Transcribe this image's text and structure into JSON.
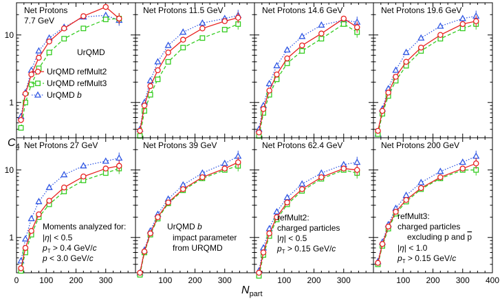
{
  "figure": {
    "ylabel_main": "C",
    "ylabel_sub": "4",
    "xlabel_main": "N",
    "xlabel_sub": "part",
    "ytick_labels": [
      "1",
      "10"
    ],
    "xtick_labels": [
      "0",
      "100",
      "200",
      "300",
      "400"
    ],
    "series_style": [
      {
        "name": "UrQMD refMult2",
        "color": "#e8201f",
        "marker": "circle",
        "dash": "solid"
      },
      {
        "name": "UrQMD refMult3",
        "color": "#33cc1f",
        "marker": "square",
        "dash": "dashed"
      },
      {
        "name": "UrQMD b",
        "color": "#2f56e3",
        "marker": "triangle",
        "dash": "dotted"
      }
    ],
    "legend": {
      "title": "UrQMD",
      "entries": [
        {
          "text": "UrQMD refMult2"
        },
        {
          "text": "UrQMD refMult3"
        },
        {
          "prefix": "UrQMD ",
          "italic": "b"
        }
      ]
    },
    "notes": {
      "moments": {
        "title": "Moments analyzed for:",
        "l1_pre": "|",
        "l1_sym": "η",
        "l1_post": "| < 0.5",
        "l2_p": "p",
        "l2_sub": "T",
        "l2_mid": " > 0.4 GeV/",
        "l2_c": "c",
        "l3_p": "p",
        "l3_mid": " < 3.0 GeV/",
        "l3_c": "c"
      },
      "b_def": {
        "l1_pre": "UrQMD ",
        "l1_b": "b",
        "l2": "impact parameter",
        "l3": "from URQMD"
      },
      "refmult2": {
        "l1": "refMult2:",
        "l2": "charged particles",
        "l3_pre": "|",
        "l3_sym": "η",
        "l3_post": "| < 0.5",
        "l4_p": "p",
        "l4_sub": "T",
        "l4_mid": " > 0.15 GeV/",
        "l4_c": "c"
      },
      "refmult3": {
        "l1": "refMult3:",
        "l2": "charged particles",
        "l3_pre": "excluding p and ",
        "l3_pbar": "p",
        "l4_pre": "|",
        "l4_sym": "η",
        "l4_post": "| < 1.0",
        "l5_p": "p",
        "l5_sub": "T",
        "l5_mid": " > 0.15 GeV/",
        "l5_c": "c"
      }
    }
  },
  "chart_data": [
    {
      "type": "line",
      "title": "Net Protons",
      "subtitle": "7.7 GeV",
      "xlabel": "Npart",
      "ylabel": "C4",
      "xlim": [
        0,
        400
      ],
      "ylim": [
        0.3,
        30
      ],
      "yscale": "log",
      "series": [
        {
          "name": "UrQMD refMult2",
          "x": [
            15,
            30,
            50,
            75,
            110,
            160,
            225,
            300,
            345
          ],
          "y": [
            0.55,
            1.35,
            2.6,
            4.6,
            8.0,
            12.5,
            19.0,
            26.0,
            17.5
          ]
        },
        {
          "name": "UrQMD refMult3",
          "x": [
            15,
            30,
            50,
            75,
            110,
            160,
            225,
            300,
            345
          ],
          "y": [
            0.42,
            1.0,
            1.85,
            3.2,
            5.5,
            8.8,
            12.5,
            17.0,
            17.5
          ]
        },
        {
          "name": "UrQMD b",
          "x": [
            15,
            30,
            50,
            75,
            110,
            160,
            225,
            300,
            345
          ],
          "y": [
            0.62,
            1.4,
            3.0,
            5.8,
            9.0,
            13.0,
            18.5,
            19.5,
            16.5
          ]
        }
      ]
    },
    {
      "type": "line",
      "title": "Net Protons 11.5 GeV",
      "xlabel": "Npart",
      "ylabel": "C4",
      "xlim": [
        0,
        400
      ],
      "ylim": [
        0.3,
        30
      ],
      "yscale": "log",
      "series": [
        {
          "name": "UrQMD refMult2",
          "x": [
            15,
            30,
            50,
            75,
            110,
            160,
            225,
            300,
            345
          ],
          "y": [
            0.38,
            0.9,
            1.75,
            3.0,
            5.5,
            8.5,
            12.5,
            16.0,
            18.0
          ]
        },
        {
          "name": "UrQMD refMult3",
          "x": [
            15,
            30,
            50,
            75,
            110,
            160,
            225,
            300,
            345
          ],
          "y": [
            0.32,
            0.75,
            1.3,
            2.2,
            4.0,
            6.5,
            9.0,
            12.0,
            14.5
          ]
        },
        {
          "name": "UrQMD b",
          "x": [
            15,
            30,
            50,
            75,
            110,
            160,
            225,
            300,
            345
          ],
          "y": [
            0.4,
            1.0,
            2.1,
            4.0,
            7.0,
            11.0,
            15.0,
            17.5,
            19.5
          ]
        }
      ]
    },
    {
      "type": "line",
      "title": "Net Protons 14.6 GeV",
      "xlabel": "Npart",
      "ylabel": "C4",
      "xlim": [
        0,
        400
      ],
      "ylim": [
        0.3,
        30
      ],
      "yscale": "log",
      "series": [
        {
          "name": "UrQMD refMult2",
          "x": [
            15,
            30,
            50,
            75,
            110,
            160,
            225,
            300,
            345
          ],
          "y": [
            0.36,
            0.8,
            1.5,
            2.6,
            4.5,
            7.0,
            10.5,
            17.5,
            13.0
          ]
        },
        {
          "name": "UrQMD refMult3",
          "x": [
            15,
            30,
            50,
            75,
            110,
            160,
            225,
            300,
            345
          ],
          "y": [
            0.32,
            0.7,
            1.3,
            2.2,
            3.8,
            5.8,
            8.8,
            14.5,
            11.0
          ]
        },
        {
          "name": "UrQMD b",
          "x": [
            15,
            30,
            50,
            75,
            110,
            160,
            225,
            300,
            345
          ],
          "y": [
            0.4,
            0.9,
            1.9,
            3.5,
            6.0,
            9.5,
            14.0,
            16.5,
            15.5
          ]
        }
      ]
    },
    {
      "type": "line",
      "title": "Net Protons 19.6 GeV",
      "xlabel": "Npart",
      "ylabel": "C4",
      "xlim": [
        0,
        400
      ],
      "ylim": [
        0.3,
        30
      ],
      "yscale": "log",
      "series": [
        {
          "name": "UrQMD refMult2",
          "x": [
            15,
            30,
            50,
            75,
            110,
            160,
            225,
            300,
            345
          ],
          "y": [
            0.38,
            0.75,
            1.4,
            2.4,
            4.0,
            6.5,
            10.0,
            14.5,
            16.0
          ]
        },
        {
          "name": "UrQMD refMult3",
          "x": [
            15,
            30,
            50,
            75,
            110,
            160,
            225,
            300,
            345
          ],
          "y": [
            0.34,
            0.68,
            1.25,
            2.1,
            3.5,
            5.8,
            8.8,
            12.5,
            14.5
          ]
        },
        {
          "name": "UrQMD b",
          "x": [
            15,
            30,
            50,
            75,
            110,
            160,
            225,
            300,
            345
          ],
          "y": [
            0.34,
            0.8,
            1.6,
            3.0,
            5.5,
            9.0,
            13.5,
            17.5,
            19.0
          ]
        }
      ]
    },
    {
      "type": "line",
      "title": "Net Protons 27 GeV",
      "xlabel": "Npart",
      "ylabel": "C4",
      "xlim": [
        0,
        400
      ],
      "ylim": [
        0.3,
        30
      ],
      "yscale": "log",
      "series": [
        {
          "name": "UrQMD refMult2",
          "x": [
            15,
            30,
            50,
            75,
            110,
            160,
            225,
            300,
            345
          ],
          "y": [
            0.35,
            0.7,
            1.25,
            2.2,
            3.5,
            5.5,
            8.0,
            10.5,
            11.5
          ]
        },
        {
          "name": "UrQMD refMult3",
          "x": [
            15,
            30,
            50,
            75,
            110,
            160,
            225,
            300,
            345
          ],
          "y": [
            0.32,
            0.6,
            1.1,
            2.0,
            3.1,
            4.8,
            7.0,
            9.0,
            10.5
          ]
        },
        {
          "name": "UrQMD b",
          "x": [
            15,
            30,
            50,
            75,
            110,
            160,
            225,
            300,
            345
          ],
          "y": [
            0.45,
            0.95,
            1.9,
            3.4,
            5.5,
            8.5,
            11.5,
            13.5,
            15.0
          ]
        }
      ]
    },
    {
      "type": "line",
      "title": "Net Protons 39 GeV",
      "xlabel": "Npart",
      "ylabel": "C4",
      "xlim": [
        0,
        400
      ],
      "ylim": [
        0.3,
        30
      ],
      "yscale": "log",
      "series": [
        {
          "name": "UrQMD refMult2",
          "x": [
            15,
            30,
            50,
            75,
            110,
            160,
            225,
            300,
            345
          ],
          "y": [
            0.3,
            0.62,
            1.15,
            2.0,
            3.3,
            5.2,
            7.8,
            10.5,
            13.0
          ]
        },
        {
          "name": "UrQMD refMult3",
          "x": [
            15,
            30,
            50,
            75,
            110,
            160,
            225,
            300,
            345
          ],
          "y": [
            0.28,
            0.6,
            1.1,
            1.9,
            3.2,
            5.0,
            7.5,
            10.0,
            11.5
          ]
        },
        {
          "name": "UrQMD b",
          "x": [
            15,
            30,
            50,
            75,
            110,
            160,
            225,
            300,
            345
          ],
          "y": [
            0.3,
            0.65,
            1.25,
            2.2,
            3.7,
            6.0,
            9.0,
            12.5,
            16.0
          ]
        }
      ]
    },
    {
      "type": "line",
      "title": "Net Protons 62.4 GeV",
      "xlabel": "Npart",
      "ylabel": "C4",
      "xlim": [
        0,
        400
      ],
      "ylim": [
        0.3,
        30
      ],
      "yscale": "log",
      "series": [
        {
          "name": "UrQMD refMult2",
          "x": [
            15,
            30,
            50,
            75,
            110,
            160,
            225,
            300,
            345
          ],
          "y": [
            0.3,
            0.6,
            1.15,
            2.0,
            3.3,
            5.2,
            7.8,
            10.5,
            10.0
          ]
        },
        {
          "name": "UrQMD refMult3",
          "x": [
            15,
            30,
            50,
            75,
            110,
            160,
            225,
            300,
            345
          ],
          "y": [
            0.27,
            0.55,
            1.05,
            1.85,
            3.1,
            4.9,
            7.4,
            10.0,
            9.0
          ]
        },
        {
          "name": "UrQMD b",
          "x": [
            15,
            30,
            50,
            75,
            110,
            160,
            225,
            300,
            345
          ],
          "y": [
            0.32,
            0.7,
            1.35,
            2.4,
            3.9,
            6.2,
            9.0,
            12.0,
            13.0
          ]
        }
      ]
    },
    {
      "type": "line",
      "title": "Net Protons 200 GeV",
      "xlabel": "Npart",
      "ylabel": "C4",
      "xlim": [
        0,
        400
      ],
      "ylim": [
        0.3,
        30
      ],
      "yscale": "log",
      "series": [
        {
          "name": "UrQMD refMult2",
          "x": [
            15,
            30,
            50,
            75,
            110,
            160,
            225,
            300,
            345
          ],
          "y": [
            0.42,
            0.8,
            1.45,
            2.4,
            3.6,
            5.4,
            7.8,
            10.5,
            12.5
          ]
        },
        {
          "name": "UrQMD refMult3",
          "x": [
            15,
            30,
            50,
            75,
            110,
            160,
            225,
            300,
            345
          ],
          "y": [
            0.4,
            0.75,
            1.35,
            2.25,
            3.4,
            5.2,
            7.5,
            10.0,
            10.0
          ]
        },
        {
          "name": "UrQMD b",
          "x": [
            15,
            30,
            50,
            75,
            110,
            160,
            225,
            300,
            345
          ],
          "y": [
            0.44,
            0.85,
            1.55,
            2.7,
            4.2,
            6.5,
            9.5,
            13.0,
            16.0
          ]
        }
      ]
    }
  ]
}
